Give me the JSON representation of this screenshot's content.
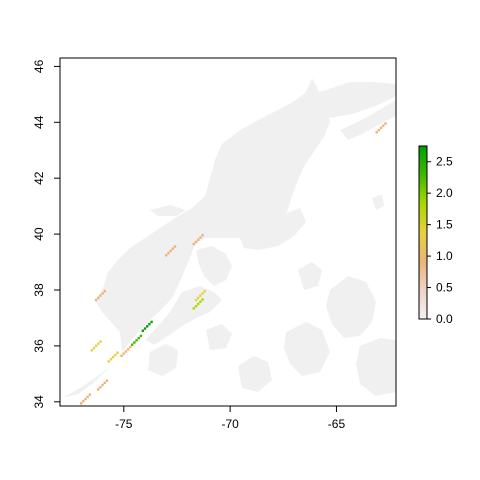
{
  "map": {
    "x_ticks": [
      -75,
      -70,
      -65
    ],
    "x_tick_labels": [
      "-75",
      "-70",
      "-65"
    ],
    "y_ticks": [
      34,
      36,
      38,
      40,
      42,
      44,
      46
    ],
    "y_tick_labels": [
      "34",
      "36",
      "38",
      "40",
      "42",
      "44",
      "46"
    ],
    "xlim": [
      -78.0,
      -62.2
    ],
    "ylim": [
      33.85,
      46.3
    ],
    "land_color": "#f0f0f0",
    "box_color": "#000000"
  },
  "legend": {
    "ticks": [
      0.0,
      0.5,
      1.0,
      1.5,
      2.0,
      2.5
    ],
    "tick_labels": [
      "0.0",
      "0.5",
      "1.0",
      "1.5",
      "2.0",
      "2.5"
    ],
    "range": [
      0,
      2.75
    ],
    "colors": [
      "#f2f2f2",
      "#f0d2c8",
      "#eab478",
      "#e8d040",
      "#a8d800",
      "#40b800",
      "#00a000"
    ]
  },
  "chart_data": {
    "type": "heatmap",
    "title": "",
    "xlabel": "",
    "ylabel": "",
    "xlim": [
      -78.0,
      -62.2
    ],
    "ylim": [
      33.85,
      46.3
    ],
    "value_range": [
      0,
      2.75
    ],
    "hotspots": [
      {
        "lon": -73.9,
        "lat": 36.7,
        "value": 2.6
      },
      {
        "lon": -74.4,
        "lat": 36.2,
        "value": 2.2
      },
      {
        "lon": -74.9,
        "lat": 35.8,
        "value": 1.1
      },
      {
        "lon": -75.5,
        "lat": 35.6,
        "value": 1.4
      },
      {
        "lon": -76.0,
        "lat": 34.6,
        "value": 1.0
      },
      {
        "lon": -76.8,
        "lat": 34.1,
        "value": 0.9
      },
      {
        "lon": -71.4,
        "lat": 37.8,
        "value": 1.5
      },
      {
        "lon": -71.5,
        "lat": 37.5,
        "value": 1.8
      },
      {
        "lon": -72.8,
        "lat": 39.4,
        "value": 0.9
      },
      {
        "lon": -71.5,
        "lat": 39.8,
        "value": 0.8
      },
      {
        "lon": -62.9,
        "lat": 43.8,
        "value": 0.9
      },
      {
        "lon": -76.1,
        "lat": 37.8,
        "value": 0.8
      },
      {
        "lon": -76.3,
        "lat": 36.0,
        "value": 1.6
      }
    ]
  }
}
